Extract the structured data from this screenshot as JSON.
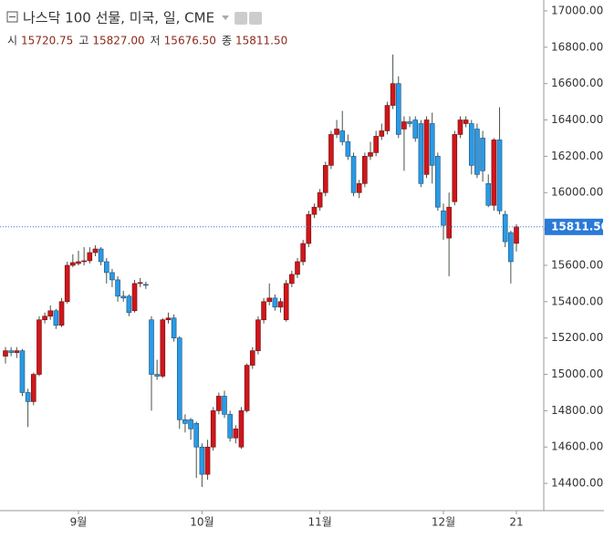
{
  "chart_data": {
    "type": "candlestick",
    "title": "나스닥 100 선물, 미국, 일, CME",
    "legend": [
      {
        "key": "시",
        "value": "15720.75"
      },
      {
        "key": "고",
        "value": "15827.00"
      },
      {
        "key": "저",
        "value": "15676.50"
      },
      {
        "key": "종",
        "value": "15811.50"
      }
    ],
    "categories": [
      null,
      null,
      null,
      null,
      null,
      null,
      null,
      null,
      null,
      null,
      null,
      null,
      null,
      "9월",
      null,
      null,
      null,
      null,
      null,
      null,
      null,
      null,
      null,
      null,
      null,
      null,
      null,
      null,
      null,
      null,
      null,
      null,
      null,
      null,
      null,
      "10월",
      null,
      null,
      null,
      null,
      null,
      null,
      null,
      null,
      null,
      null,
      null,
      null,
      null,
      null,
      null,
      null,
      null,
      null,
      null,
      null,
      "11월",
      null,
      null,
      null,
      null,
      null,
      null,
      null,
      null,
      null,
      null,
      null,
      null,
      null,
      null,
      null,
      null,
      null,
      null,
      null,
      null,
      null,
      "12월",
      null,
      null,
      null,
      null,
      null,
      null,
      null,
      null,
      null,
      null,
      null,
      null,
      "21"
    ],
    "open": [
      15100,
      15130,
      15120,
      15130,
      14900,
      14850,
      15000,
      15300,
      15320,
      15350,
      15270,
      15400,
      15600,
      15610,
      15620,
      15625,
      15670,
      15690,
      15620,
      15560,
      15520,
      15430,
      15430,
      15350,
      15500,
      15495,
      15300,
      15000,
      14990,
      15300,
      15310,
      15200,
      14750,
      14750,
      14730,
      14600,
      14450,
      14600,
      14800,
      14880,
      14780,
      14650,
      14600,
      14800,
      15050,
      15130,
      15300,
      15400,
      15420,
      15370,
      15300,
      15500,
      15550,
      15620,
      15720,
      15880,
      15920,
      16000,
      16150,
      16320,
      16340,
      16280,
      16200,
      16000,
      16050,
      16200,
      16220,
      16310,
      16340,
      16480,
      16600,
      16350,
      16390,
      16400,
      16380,
      16100,
      16380,
      16200,
      15900,
      15750,
      15950,
      16320,
      16380,
      16380,
      16350,
      16300,
      16050,
      15930,
      16290,
      15880,
      15780,
      15720.75
    ],
    "high": [
      15150,
      15150,
      15150,
      15140,
      14920,
      15010,
      15320,
      15340,
      15380,
      15360,
      15420,
      15620,
      15660,
      15680,
      15700,
      15700,
      15710,
      15700,
      15640,
      15580,
      15540,
      15460,
      15440,
      15520,
      15530,
      15510,
      15320,
      15080,
      15310,
      15340,
      15330,
      15210,
      14780,
      14760,
      14740,
      14620,
      14640,
      14820,
      14900,
      14910,
      14800,
      14720,
      14820,
      15060,
      15150,
      15320,
      15420,
      15500,
      15440,
      15420,
      15520,
      15570,
      15640,
      15740,
      15900,
      15940,
      16020,
      16170,
      16340,
      16400,
      16450,
      16320,
      16220,
      16070,
      16220,
      16280,
      16340,
      16380,
      16500,
      16760,
      16640,
      16420,
      16420,
      16420,
      16400,
      16420,
      16440,
      16220,
      15940,
      16000,
      16340,
      16420,
      16420,
      16400,
      16380,
      16340,
      16100,
      16300,
      16470,
      15900,
      15790,
      15827
    ],
    "low": [
      15060,
      15100,
      15090,
      14880,
      14710,
      14830,
      14990,
      15280,
      15300,
      15250,
      15260,
      15390,
      15590,
      15600,
      15600,
      15610,
      15650,
      15600,
      15500,
      15480,
      15400,
      15400,
      15320,
      15340,
      15480,
      15470,
      14800,
      14970,
      14980,
      15280,
      15180,
      14700,
      14680,
      14640,
      14430,
      14380,
      14420,
      14580,
      14780,
      14760,
      14630,
      14620,
      14590,
      14790,
      15030,
      15110,
      15280,
      15380,
      15350,
      15340,
      15290,
      15480,
      15530,
      15600,
      15700,
      15860,
      15900,
      15980,
      16130,
      16300,
      16260,
      16180,
      15980,
      15970,
      16030,
      16180,
      16200,
      16290,
      16320,
      16460,
      16300,
      16120,
      16360,
      16280,
      16030,
      16080,
      16050,
      15900,
      15740,
      15540,
      15930,
      16300,
      16360,
      16100,
      16080,
      16060,
      15920,
      15900,
      15880,
      15700,
      15500,
      15676.5
    ],
    "close": [
      15130,
      15120,
      15130,
      14900,
      14850,
      15000,
      15300,
      15320,
      15350,
      15270,
      15400,
      15600,
      15615,
      15620,
      15625,
      15670,
      15690,
      15620,
      15560,
      15520,
      15430,
      15420,
      15340,
      15500,
      15505,
      15490,
      15000,
      14990,
      15300,
      15310,
      15200,
      14750,
      14730,
      14700,
      14600,
      14450,
      14600,
      14800,
      14880,
      14780,
      14650,
      14700,
      14800,
      15050,
      15130,
      15300,
      15400,
      15420,
      15370,
      15400,
      15500,
      15550,
      15620,
      15720,
      15880,
      15920,
      16000,
      16150,
      16320,
      16350,
      16280,
      16200,
      16000,
      16050,
      16200,
      16220,
      16310,
      16340,
      16480,
      16600,
      16320,
      16390,
      16380,
      16300,
      16050,
      16400,
      16150,
      15920,
      15820,
      15920,
      16320,
      16400,
      16400,
      16150,
      16100,
      16120,
      15930,
      16290,
      15900,
      15730,
      15620,
      15811.5
    ],
    "ylim": [
      14250,
      17060
    ],
    "yticks": [
      {
        "value": 14400,
        "label": "14400.00"
      },
      {
        "value": 14600,
        "label": "14600.00"
      },
      {
        "value": 14800,
        "label": "14800.00"
      },
      {
        "value": 15000,
        "label": "15000.00"
      },
      {
        "value": 15200,
        "label": "15200.00"
      },
      {
        "value": 15400,
        "label": "15400.00"
      },
      {
        "value": 15600,
        "label": "15600.00"
      },
      {
        "value": 15800,
        "label": "15800.00"
      },
      {
        "value": 16000,
        "label": "16000.00"
      },
      {
        "value": 16200,
        "label": "16200.00"
      },
      {
        "value": 16400,
        "label": "16400.00"
      },
      {
        "value": 16600,
        "label": "16600.00"
      },
      {
        "value": 16800,
        "label": "16800.00"
      },
      {
        "value": 17000,
        "label": "17000.00"
      }
    ],
    "last_price": {
      "value": 15811.5,
      "label": "15811.50"
    },
    "up_color": "#d0161b",
    "down_color": "#2a9ae6",
    "wick_color": "#465446",
    "price_line_color": "#2a7ad8"
  }
}
